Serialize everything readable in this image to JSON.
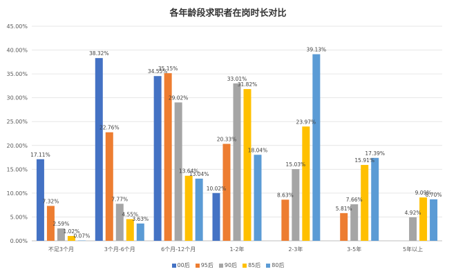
{
  "chart_data": {
    "type": "bar",
    "title": "各年龄段求职者在岗时长对比",
    "xlabel": "",
    "ylabel": "",
    "ylim": [
      0,
      45
    ],
    "y_ticks": [
      "0.00%",
      "5.00%",
      "10.00%",
      "15.00%",
      "20.00%",
      "25.00%",
      "30.00%",
      "35.00%",
      "40.00%",
      "45.00%"
    ],
    "grid": true,
    "legend_position": "bottom",
    "categories": [
      "不足3个月",
      "3个月-6个月",
      "6个月-12个月",
      "1-2年",
      "2-3年",
      "3-5年",
      "5年以上"
    ],
    "series": [
      {
        "name": "00后",
        "color": "#4472C4",
        "values": [
          17.11,
          38.32,
          34.55,
          10.02,
          null,
          null,
          null
        ],
        "labels": [
          "17.11%",
          "38.32%",
          "34.55%",
          "10.02%",
          "",
          "",
          ""
        ]
      },
      {
        "name": "95后",
        "color": "#ED7D31",
        "values": [
          7.32,
          22.76,
          35.15,
          20.33,
          8.63,
          5.81,
          null
        ],
        "labels": [
          "7.32%",
          "22.76%",
          "35.15%",
          "20.33%",
          "8.63%",
          "5.81%",
          ""
        ]
      },
      {
        "name": "90后",
        "color": "#A5A5A5",
        "values": [
          2.59,
          7.77,
          29.02,
          33.01,
          15.03,
          7.66,
          4.92
        ],
        "labels": [
          "2.59%",
          "7.77%",
          "29.02%",
          "33.01%",
          "15.03%",
          "7.66%",
          "4.92%"
        ]
      },
      {
        "name": "85后",
        "color": "#FFC000",
        "values": [
          1.02,
          4.55,
          13.64,
          31.82,
          23.97,
          15.91,
          9.09
        ],
        "labels": [
          "1.02%",
          "4.55%",
          "13.64%",
          "31.82%",
          "23.97%",
          "15.91%",
          "9.09%"
        ]
      },
      {
        "name": "80后",
        "color": "#5B9BD5",
        "values": [
          0.07,
          3.63,
          13.04,
          18.04,
          39.13,
          17.39,
          8.7
        ],
        "labels": [
          "0.07%",
          "3.63%",
          "13.04%",
          "18.04%",
          "39.13%",
          "17.39%",
          "8.70%"
        ]
      }
    ]
  }
}
